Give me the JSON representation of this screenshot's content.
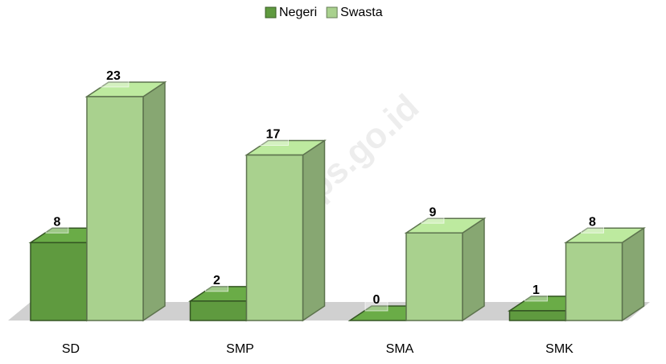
{
  "chart_data": {
    "type": "bar3d",
    "categories": [
      "SD",
      "SMP",
      "SMA",
      "SMK"
    ],
    "series": [
      {
        "name": "Negeri",
        "color": "#5f9a3f",
        "values": [
          8,
          2,
          0,
          1
        ]
      },
      {
        "name": "Swasta",
        "color": "#a9d18e",
        "values": [
          23,
          17,
          9,
          8
        ]
      }
    ],
    "legend": "top",
    "watermark": "ote.bps.go.id"
  }
}
